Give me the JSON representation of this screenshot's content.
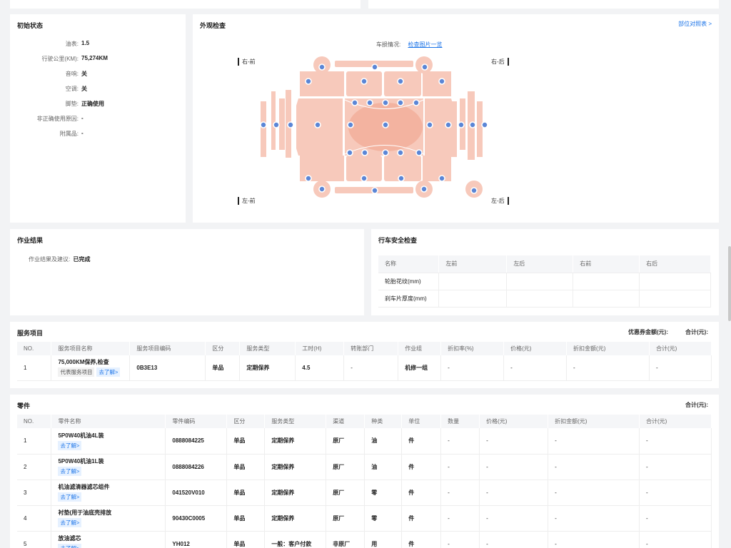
{
  "initial": {
    "title": "初始状态",
    "items": [
      {
        "k": "油表:",
        "v": "1.5"
      },
      {
        "k": "行驶公里(KM):",
        "v": "75,274KM"
      },
      {
        "k": "音响:",
        "v": "关"
      },
      {
        "k": "空调:",
        "v": "关"
      },
      {
        "k": "脚垫:",
        "v": "正确使用"
      },
      {
        "k": "非正确使用原因:",
        "v": "-"
      },
      {
        "k": "附属品:",
        "v": "-"
      }
    ]
  },
  "exterior": {
    "title": "外观检查",
    "ref_link": "部位对照表 >",
    "damage_label": "车损情况:",
    "damage_link": "检查图片一览",
    "corners": {
      "fr": "右-前",
      "rr": "右-后",
      "fl": "左-前",
      "rl": "左-后"
    }
  },
  "work": {
    "title": "作业结果",
    "label": "作业结果及建议:",
    "value": "已完成"
  },
  "safety": {
    "title": "行车安全检查",
    "headers": [
      "名称",
      "左前",
      "左后",
      "右前",
      "右后"
    ],
    "rows": [
      [
        "轮胎花纹(mm)",
        "",
        "",
        "",
        ""
      ],
      [
        "刹车片厚度(mm)",
        "",
        "",
        "",
        ""
      ]
    ]
  },
  "services": {
    "title": "服务项目",
    "coupon_label": "优惠券金额(元):",
    "total_label": "合计(元):",
    "headers": [
      "NO.",
      "服务项目名称",
      "服务项目编码",
      "区分",
      "服务类型",
      "工时(H)",
      "转账部门",
      "作业组",
      "折扣率(%)",
      "价格(元)",
      "折扣金额(元)",
      "合计(元)"
    ],
    "rows": [
      {
        "no": "1",
        "name": "75,000KM保养,检查",
        "tag": "代表服务项目",
        "more": "去了解>",
        "code": "0B3E13",
        "type": "单品",
        "svc": "定期保养",
        "hours": "4.5",
        "dept": "-",
        "group": "机修一组",
        "rate": "-",
        "price": "-",
        "disc": "-",
        "total": "-"
      }
    ]
  },
  "parts": {
    "title": "零件",
    "total_label": "合计(元):",
    "headers": [
      "NO.",
      "零件名称",
      "零件编码",
      "区分",
      "服务类型",
      "渠道",
      "种类",
      "单位",
      "数量",
      "价格(元)",
      "折扣金额(元)",
      "合计(元)"
    ],
    "more": "去了解>",
    "rows": [
      {
        "no": "1",
        "name": "5P0W40机油4L装",
        "code": "0888084225",
        "type": "单品",
        "svc": "定期保养",
        "channel": "原厂",
        "kind": "油",
        "unit": "件",
        "qty": "-",
        "price": "-",
        "disc": "-",
        "total": "-"
      },
      {
        "no": "2",
        "name": "5P0W40机油1L装",
        "code": "0888084226",
        "type": "单品",
        "svc": "定期保养",
        "channel": "原厂",
        "kind": "油",
        "unit": "件",
        "qty": "-",
        "price": "-",
        "disc": "-",
        "total": "-"
      },
      {
        "no": "3",
        "name": "机油滤清器滤芯组件",
        "code": "041520V010",
        "type": "单品",
        "svc": "定期保养",
        "channel": "原厂",
        "kind": "零",
        "unit": "件",
        "qty": "-",
        "price": "-",
        "disc": "-",
        "total": "-"
      },
      {
        "no": "4",
        "name": "衬垫(用于油底壳排放",
        "code": "90430C0005",
        "type": "单品",
        "svc": "定期保养",
        "channel": "原厂",
        "kind": "零",
        "unit": "件",
        "qty": "-",
        "price": "-",
        "disc": "-",
        "total": "-"
      },
      {
        "no": "5",
        "name": "放油滤芯",
        "code": "YH012",
        "type": "单品",
        "svc": "一般：客户付款",
        "channel": "非原厂",
        "kind": "用",
        "unit": "件",
        "qty": "-",
        "price": "-",
        "disc": "-",
        "total": "-"
      }
    ]
  }
}
